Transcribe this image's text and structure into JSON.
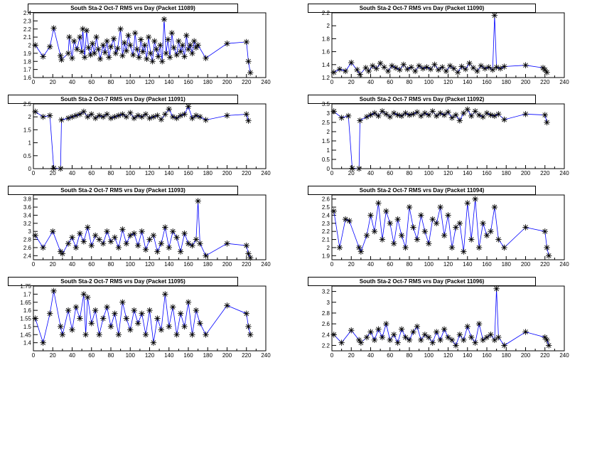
{
  "chart_data": [
    {
      "type": "line",
      "title": "South Sta-2 Oct-7 RMS vrs Day (Packet 11089)",
      "xlabel": "",
      "ylabel": "",
      "xlim": [
        0,
        240
      ],
      "ylim": [
        1.6,
        2.4
      ],
      "xticks": [
        0,
        20,
        40,
        60,
        80,
        100,
        120,
        140,
        160,
        180,
        200,
        220,
        240
      ],
      "yticks": [
        1.6,
        1.7,
        1.8,
        1.9,
        2,
        2.1,
        2.2,
        2.3,
        2.4
      ],
      "ytick_labels": [
        "1.6",
        "1.7",
        "1.8",
        "1.9",
        "2",
        "2.1",
        "2.2",
        "2.3",
        "2.4"
      ],
      "marker": "asterisk",
      "line_color": "#0000ff",
      "x": [
        2,
        10,
        17,
        21,
        28,
        29,
        36,
        37,
        40,
        42,
        45,
        48,
        50,
        51,
        53,
        55,
        57,
        59,
        61,
        63,
        65,
        67,
        69,
        72,
        74,
        76,
        78,
        80,
        83,
        85,
        87,
        90,
        92,
        94,
        96,
        98,
        100,
        103,
        105,
        107,
        109,
        111,
        113,
        115,
        117,
        119,
        121,
        123,
        125,
        127,
        129,
        131,
        133,
        135,
        137,
        139,
        141,
        143,
        145,
        148,
        150,
        152,
        154,
        156,
        158,
        160,
        162,
        164,
        166,
        168,
        170,
        178,
        200,
        220,
        222,
        224
      ],
      "y": [
        2.0,
        1.86,
        1.98,
        2.21,
        1.87,
        1.82,
        1.9,
        2.1,
        1.84,
        2.05,
        1.95,
        2.1,
        1.92,
        2.2,
        1.85,
        2.18,
        1.97,
        1.88,
        2.02,
        1.9,
        2.1,
        1.95,
        1.83,
        2.0,
        1.91,
        2.05,
        1.85,
        1.98,
        2.08,
        1.9,
        1.96,
        2.2,
        1.87,
        2.03,
        1.93,
        2.12,
        2.0,
        1.88,
        2.15,
        1.95,
        1.85,
        2.07,
        1.92,
        2.0,
        1.83,
        2.1,
        1.9,
        1.8,
        2.05,
        1.95,
        1.86,
        2.0,
        1.8,
        2.32,
        1.9,
        2.07,
        1.85,
        2.15,
        1.97,
        1.88,
        2.05,
        1.92,
        2.0,
        1.86,
        2.12,
        1.95,
        2.0,
        1.9,
        2.05,
        1.97,
        2.0,
        1.84,
        2.02,
        2.04,
        1.8,
        1.66
      ]
    },
    {
      "type": "line",
      "title": "South Sta-2 Oct-7 RMS vrs Day (Packet 11090)",
      "xlabel": "",
      "ylabel": "",
      "xlim": [
        0,
        240
      ],
      "ylim": [
        1.2,
        2.2
      ],
      "xticks": [
        0,
        20,
        40,
        60,
        80,
        100,
        120,
        140,
        160,
        180,
        200,
        220,
        240
      ],
      "yticks": [
        1.2,
        1.4,
        1.6,
        1.8,
        2,
        2.2
      ],
      "ytick_labels": [
        "1.2",
        "1.4",
        "1.6",
        "1.8",
        "2",
        "2.2"
      ],
      "marker": "asterisk",
      "line_color": "#0000ff",
      "x": [
        2,
        8,
        14,
        20,
        26,
        29,
        35,
        38,
        42,
        46,
        50,
        54,
        58,
        62,
        66,
        70,
        74,
        78,
        82,
        86,
        90,
        94,
        98,
        102,
        106,
        110,
        114,
        118,
        122,
        126,
        130,
        134,
        138,
        142,
        146,
        150,
        154,
        158,
        162,
        166,
        168,
        170,
        174,
        178,
        200,
        218,
        220,
        222
      ],
      "y": [
        1.28,
        1.33,
        1.3,
        1.43,
        1.32,
        1.25,
        1.35,
        1.3,
        1.38,
        1.34,
        1.42,
        1.36,
        1.3,
        1.38,
        1.35,
        1.32,
        1.4,
        1.33,
        1.36,
        1.3,
        1.38,
        1.34,
        1.36,
        1.33,
        1.4,
        1.32,
        1.36,
        1.3,
        1.38,
        1.34,
        1.28,
        1.37,
        1.33,
        1.42,
        1.35,
        1.3,
        1.38,
        1.34,
        1.36,
        1.32,
        2.16,
        1.36,
        1.34,
        1.37,
        1.39,
        1.35,
        1.32,
        1.28
      ]
    },
    {
      "type": "line",
      "title": "South Sta-2 Oct-7 RMS vrs Day (Packet 11091)",
      "xlabel": "",
      "ylabel": "",
      "xlim": [
        0,
        240
      ],
      "ylim": [
        0,
        2.5
      ],
      "xticks": [
        0,
        20,
        40,
        60,
        80,
        100,
        120,
        140,
        160,
        180,
        200,
        220,
        240
      ],
      "yticks": [
        0,
        0.5,
        1,
        1.5,
        2,
        2.5
      ],
      "ytick_labels": [
        "0",
        "0.5",
        "1",
        "1.5",
        "2",
        "2.5"
      ],
      "marker": "asterisk",
      "line_color": "#0000ff",
      "x": [
        2,
        10,
        17,
        21,
        28,
        29,
        36,
        40,
        44,
        48,
        52,
        56,
        60,
        64,
        68,
        72,
        76,
        80,
        84,
        88,
        92,
        96,
        100,
        104,
        108,
        112,
        116,
        120,
        124,
        128,
        132,
        136,
        140,
        144,
        148,
        152,
        156,
        160,
        164,
        168,
        172,
        178,
        200,
        220,
        222
      ],
      "y": [
        2.2,
        2.0,
        2.05,
        0.02,
        0.0,
        1.88,
        1.95,
        2.0,
        2.05,
        2.1,
        2.2,
        2.0,
        2.1,
        1.95,
        2.05,
        2.0,
        2.1,
        1.95,
        2.0,
        2.05,
        2.1,
        2.0,
        2.15,
        1.95,
        2.05,
        2.0,
        2.1,
        1.95,
        2.0,
        2.05,
        1.9,
        2.1,
        2.3,
        2.0,
        1.95,
        2.05,
        2.1,
        2.4,
        1.95,
        2.05,
        2.0,
        1.88,
        2.05,
        2.1,
        1.85
      ]
    },
    {
      "type": "line",
      "title": "South Sta-2 Oct-7 RMS vrs Day (Packet 11092)",
      "xlabel": "",
      "ylabel": "",
      "xlim": [
        0,
        240
      ],
      "ylim": [
        0,
        3.5
      ],
      "xticks": [
        0,
        20,
        40,
        60,
        80,
        100,
        120,
        140,
        160,
        180,
        200,
        220,
        240
      ],
      "yticks": [
        0,
        0.5,
        1,
        1.5,
        2,
        2.5,
        3,
        3.5
      ],
      "ytick_labels": [
        "0",
        "0.5",
        "1",
        "1.5",
        "2",
        "2.5",
        "3",
        "3.5"
      ],
      "marker": "asterisk",
      "line_color": "#0000ff",
      "x": [
        2,
        10,
        17,
        21,
        28,
        29,
        36,
        40,
        44,
        48,
        52,
        56,
        60,
        64,
        68,
        72,
        76,
        80,
        84,
        88,
        92,
        96,
        100,
        104,
        108,
        112,
        116,
        120,
        124,
        128,
        132,
        136,
        140,
        144,
        148,
        152,
        156,
        160,
        164,
        168,
        172,
        178,
        200,
        220,
        222
      ],
      "y": [
        3.1,
        2.75,
        2.85,
        0.02,
        0.0,
        2.6,
        2.8,
        2.9,
        3.0,
        2.85,
        3.1,
        2.95,
        2.8,
        3.0,
        2.9,
        2.85,
        3.0,
        2.9,
        2.95,
        3.05,
        2.85,
        3.0,
        2.9,
        3.1,
        2.85,
        3.0,
        2.9,
        3.05,
        2.75,
        2.9,
        2.6,
        3.0,
        3.2,
        2.85,
        3.1,
        2.9,
        2.8,
        3.0,
        2.9,
        2.85,
        2.95,
        2.65,
        2.95,
        2.9,
        2.5
      ]
    },
    {
      "type": "line",
      "title": "South Sta-2 Oct-7 RMS vrs Day (Packet 11093)",
      "xlabel": "",
      "ylabel": "",
      "xlim": [
        0,
        240
      ],
      "ylim": [
        2.3,
        3.9
      ],
      "xticks": [
        0,
        20,
        40,
        60,
        80,
        100,
        120,
        140,
        160,
        180,
        200,
        220,
        240
      ],
      "yticks": [
        2.4,
        2.6,
        2.8,
        3,
        3.2,
        3.4,
        3.6,
        3.8
      ],
      "ytick_labels": [
        "2.4",
        "2.6",
        "2.8",
        "3",
        "3.2",
        "3.4",
        "3.6",
        "3.8"
      ],
      "marker": "asterisk",
      "line_color": "#0000ff",
      "x": [
        2,
        10,
        20,
        28,
        30,
        36,
        40,
        44,
        48,
        52,
        56,
        60,
        64,
        68,
        72,
        76,
        80,
        84,
        88,
        92,
        96,
        100,
        104,
        108,
        112,
        116,
        120,
        124,
        128,
        132,
        136,
        140,
        144,
        148,
        152,
        156,
        160,
        164,
        168,
        170,
        172,
        178,
        200,
        220,
        222,
        224
      ],
      "y": [
        2.9,
        2.6,
        3.0,
        2.5,
        2.45,
        2.7,
        2.85,
        2.6,
        2.95,
        2.75,
        3.1,
        2.65,
        2.9,
        2.8,
        2.7,
        3.0,
        2.75,
        2.85,
        2.6,
        3.05,
        2.7,
        2.9,
        2.95,
        2.65,
        3.0,
        2.55,
        2.8,
        2.9,
        2.5,
        2.7,
        3.1,
        2.6,
        3.0,
        2.85,
        2.5,
        2.95,
        2.7,
        2.65,
        2.8,
        3.75,
        2.7,
        2.4,
        2.7,
        2.65,
        2.45,
        2.35
      ]
    },
    {
      "type": "line",
      "title": "South Sta-2 Oct-7 RMS vrs Day (Packet 11094)",
      "xlabel": "",
      "ylabel": "",
      "xlim": [
        0,
        240
      ],
      "ylim": [
        1.85,
        2.65
      ],
      "xticks": [
        0,
        20,
        40,
        60,
        80,
        100,
        120,
        140,
        160,
        180,
        200,
        220,
        240
      ],
      "yticks": [
        1.9,
        2,
        2.1,
        2.2,
        2.3,
        2.4,
        2.5,
        2.6
      ],
      "ytick_labels": [
        "1.9",
        "2",
        "2.1",
        "2.2",
        "2.3",
        "2.4",
        "2.5",
        "2.6"
      ],
      "marker": "asterisk",
      "line_color": "#0000ff",
      "x": [
        2,
        8,
        14,
        18,
        28,
        30,
        36,
        40,
        44,
        48,
        52,
        56,
        60,
        64,
        68,
        72,
        76,
        80,
        84,
        88,
        92,
        96,
        100,
        104,
        108,
        112,
        116,
        120,
        124,
        128,
        132,
        136,
        140,
        144,
        148,
        152,
        156,
        160,
        164,
        168,
        172,
        178,
        200,
        220,
        222,
        224
      ],
      "y": [
        2.45,
        2.0,
        2.35,
        2.33,
        2.0,
        1.95,
        2.15,
        2.4,
        2.2,
        2.55,
        2.1,
        2.45,
        2.3,
        2.05,
        2.35,
        2.15,
        2.0,
        2.5,
        2.25,
        2.1,
        2.4,
        2.2,
        2.05,
        2.35,
        2.3,
        2.5,
        2.15,
        2.4,
        2.0,
        2.25,
        2.3,
        1.95,
        2.55,
        2.1,
        2.6,
        2.0,
        2.3,
        2.15,
        2.2,
        2.5,
        2.1,
        2.0,
        2.25,
        2.2,
        2.0,
        1.9
      ]
    },
    {
      "type": "line",
      "title": "South Sta-2 Oct-7 RMS vrs Day (Packet 11095)",
      "xlabel": "",
      "ylabel": "",
      "xlim": [
        0,
        240
      ],
      "ylim": [
        1.35,
        1.75
      ],
      "xticks": [
        0,
        20,
        40,
        60,
        80,
        100,
        120,
        140,
        160,
        180,
        200,
        220,
        240
      ],
      "yticks": [
        1.4,
        1.45,
        1.5,
        1.55,
        1.6,
        1.65,
        1.7,
        1.75
      ],
      "ytick_labels": [
        "1.4",
        "1.45",
        "1.5",
        "1.55",
        "1.6",
        "1.65",
        "1.7",
        "1.75"
      ],
      "marker": "asterisk",
      "line_color": "#0000ff",
      "x": [
        2,
        10,
        17,
        21,
        28,
        30,
        36,
        40,
        44,
        48,
        52,
        54,
        56,
        60,
        64,
        68,
        72,
        76,
        80,
        84,
        88,
        92,
        96,
        100,
        104,
        108,
        112,
        116,
        120,
        124,
        128,
        132,
        136,
        140,
        144,
        148,
        152,
        156,
        160,
        164,
        168,
        172,
        178,
        200,
        220,
        222,
        224
      ],
      "y": [
        1.55,
        1.4,
        1.58,
        1.72,
        1.5,
        1.45,
        1.6,
        1.48,
        1.62,
        1.55,
        1.7,
        1.45,
        1.68,
        1.52,
        1.6,
        1.45,
        1.55,
        1.62,
        1.5,
        1.58,
        1.45,
        1.65,
        1.55,
        1.48,
        1.6,
        1.52,
        1.58,
        1.45,
        1.6,
        1.4,
        1.55,
        1.48,
        1.7,
        1.5,
        1.62,
        1.45,
        1.58,
        1.5,
        1.65,
        1.45,
        1.6,
        1.52,
        1.45,
        1.63,
        1.58,
        1.5,
        1.45
      ]
    },
    {
      "type": "line",
      "title": "South Sta-2 Oct-7 RMS vrs Day (Packet 11096)",
      "xlabel": "",
      "ylabel": "",
      "xlim": [
        0,
        240
      ],
      "ylim": [
        2.1,
        3.3
      ],
      "xticks": [
        0,
        20,
        40,
        60,
        80,
        100,
        120,
        140,
        160,
        180,
        200,
        220,
        240
      ],
      "yticks": [
        2.2,
        2.4,
        2.6,
        2.8,
        3,
        3.2
      ],
      "ytick_labels": [
        "2.2",
        "2.4",
        "2.6",
        "2.8",
        "3",
        "3.2"
      ],
      "marker": "asterisk",
      "line_color": "#0000ff",
      "x": [
        2,
        10,
        20,
        28,
        30,
        36,
        40,
        44,
        48,
        52,
        56,
        60,
        64,
        68,
        72,
        76,
        80,
        84,
        88,
        92,
        96,
        100,
        104,
        108,
        112,
        116,
        120,
        124,
        128,
        132,
        136,
        140,
        144,
        148,
        152,
        156,
        160,
        164,
        168,
        170,
        172,
        178,
        200,
        220,
        222,
        224
      ],
      "y": [
        2.4,
        2.25,
        2.48,
        2.3,
        2.25,
        2.35,
        2.45,
        2.3,
        2.5,
        2.35,
        2.6,
        2.3,
        2.4,
        2.25,
        2.5,
        2.35,
        2.3,
        2.45,
        2.55,
        2.3,
        2.4,
        2.35,
        2.25,
        2.45,
        2.3,
        2.5,
        2.35,
        2.3,
        2.2,
        2.4,
        2.3,
        2.55,
        2.35,
        2.25,
        2.6,
        2.3,
        2.35,
        2.4,
        2.3,
        3.25,
        2.35,
        2.2,
        2.45,
        2.35,
        2.3,
        2.2
      ]
    }
  ]
}
